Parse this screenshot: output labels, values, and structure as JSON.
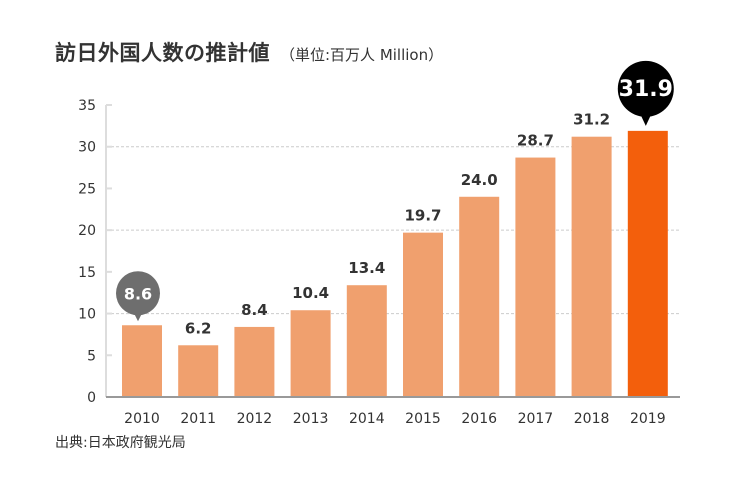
{
  "title": "訪日外国人数の推計値",
  "unit": "（単位:百万人 Million）",
  "source": "出典:日本政府観光局",
  "colors": {
    "bar": "#F0A06E",
    "highlight_bar": "#F35F0C",
    "first_bubble": "#6E6E6E",
    "highlight_bubble": "#000000",
    "grid": "#CCCCCC",
    "axis": "#999999"
  },
  "chart_data": {
    "type": "bar",
    "title": "訪日外国人数の推計値",
    "subtitle": "（単位:百万人 Million）",
    "xlabel": "",
    "ylabel": "",
    "categories": [
      "2010",
      "2011",
      "2012",
      "2013",
      "2014",
      "2015",
      "2016",
      "2017",
      "2018",
      "2019"
    ],
    "values": [
      8.6,
      6.2,
      8.4,
      10.4,
      13.4,
      19.7,
      24.0,
      28.7,
      31.2,
      31.9
    ],
    "value_labels": [
      "8.6",
      "6.2",
      "8.4",
      "10.4",
      "13.4",
      "19.7",
      "24.0",
      "28.7",
      "31.2",
      "31.9"
    ],
    "ylim": [
      0,
      35
    ],
    "yticks": [
      0,
      5,
      10,
      15,
      20,
      25,
      30,
      35
    ],
    "gridlines": [
      10,
      20,
      30
    ],
    "grid": true,
    "legend": "none",
    "highlighted": {
      "first": "2010",
      "last": "2019"
    }
  }
}
